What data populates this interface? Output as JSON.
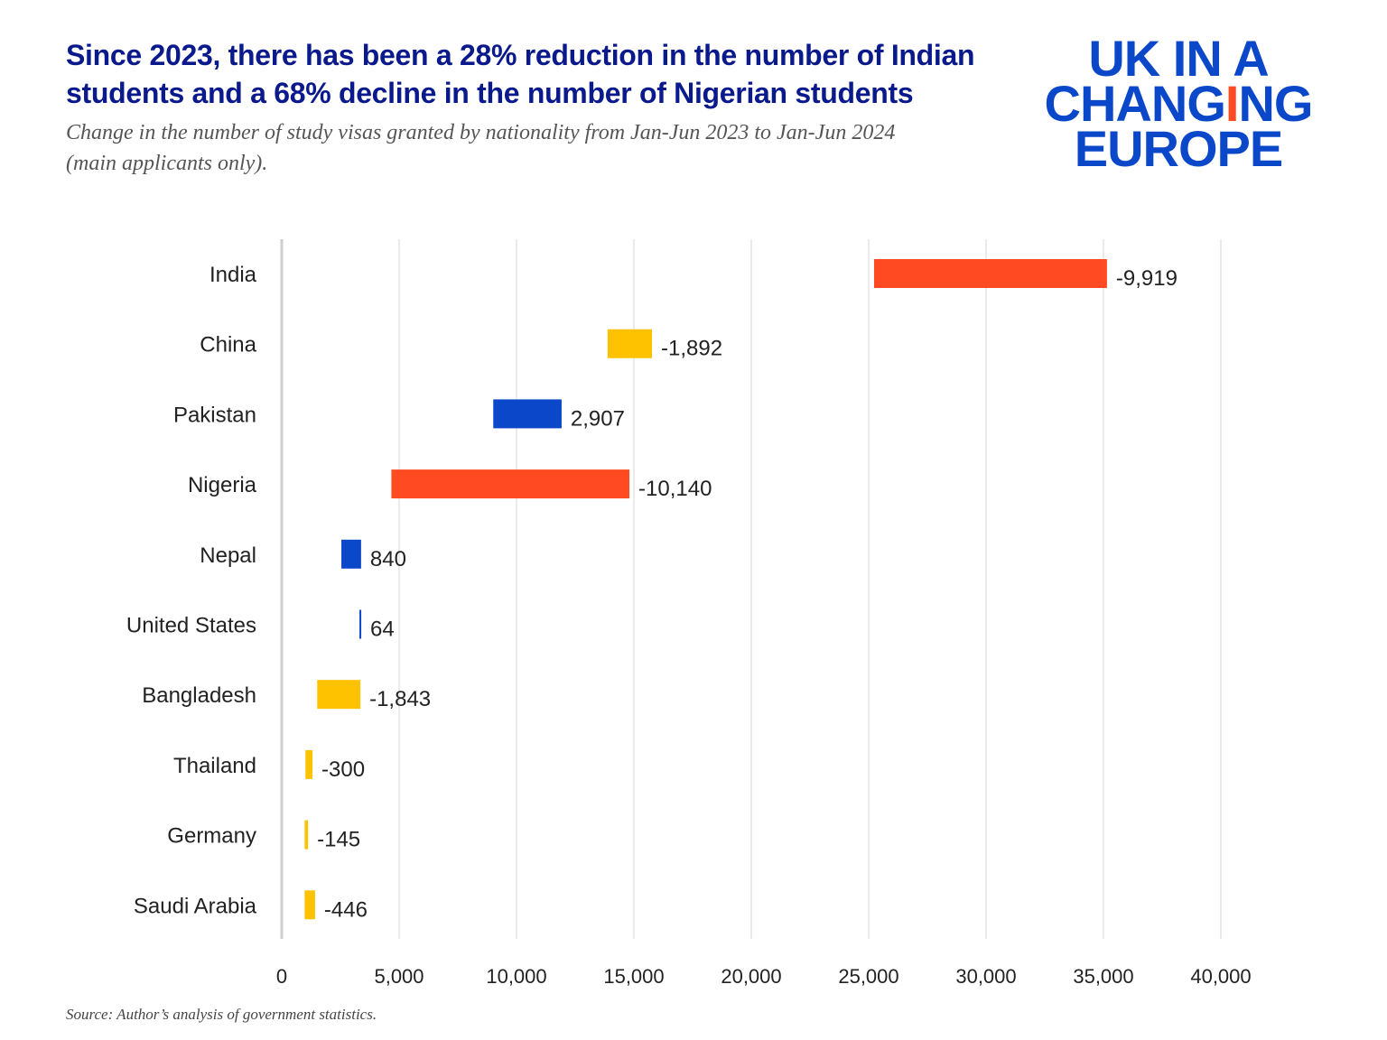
{
  "title": "Since 2023, there has been a 28% reduction in the number of Indian students and a 68% decline in the number of Nigerian students",
  "subtitle": "Change in the number of study visas granted by nationality from Jan-Jun 2023 to Jan-Jun 2024 (main applicants only).",
  "source": "Source: Author’s analysis of government statistics.",
  "logo": {
    "line1": "UK IN A",
    "line2a": "CHANG",
    "line2b": "I",
    "line2c": "NG",
    "line3": "EUROPE"
  },
  "colors": {
    "large_decrease": "#ff4a22",
    "decrease": "#ffc200",
    "increase": "#0b47c9",
    "title": "#0a1a8c"
  },
  "chart_data": {
    "type": "bar",
    "orientation": "horizontal",
    "style": "floating range bars (Jan-Jun 2023 to Jan-Jun 2024)",
    "categories": [
      "India",
      "China",
      "Pakistan",
      "Nigeria",
      "Nepal",
      "United States",
      "Bangladesh",
      "Thailand",
      "Germany",
      "Saudi Arabia"
    ],
    "value_2023": [
      35150,
      15770,
      9010,
      14810,
      2540,
      3310,
      3350,
      1310,
      1120,
      1420
    ],
    "value_2024": [
      25230,
      13880,
      11920,
      4670,
      3380,
      3370,
      1510,
      1010,
      975,
      975
    ],
    "change_labels": [
      "-9,919",
      "-1,892",
      "2,907",
      "-10,140",
      "840",
      "64",
      "-1,843",
      "-300",
      "-145",
      "-446"
    ],
    "color_group": [
      "large_decrease",
      "decrease",
      "increase",
      "large_decrease",
      "increase",
      "increase",
      "decrease",
      "decrease",
      "decrease",
      "decrease"
    ],
    "xlim": [
      0,
      40000
    ],
    "xticks": [
      0,
      5000,
      10000,
      15000,
      20000,
      25000,
      30000,
      35000,
      40000
    ],
    "xtick_labels": [
      "0",
      "5,000",
      "10,000",
      "15,000",
      "20,000",
      "25,000",
      "30,000",
      "35,000",
      "40,000"
    ],
    "grid": "vertical",
    "legend": "none",
    "xlabel": "",
    "ylabel": ""
  }
}
